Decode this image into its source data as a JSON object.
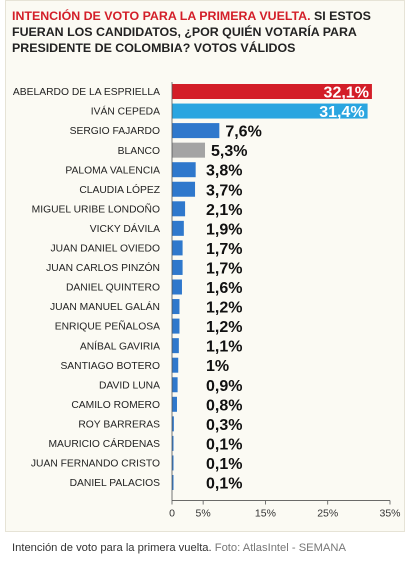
{
  "header": {
    "title_red": "INTENCIÓN DE VOTO PARA LA PRIMERA VUELTA.",
    "title_rest": "SI ESTOS FUERAN LOS CANDIDATOS, ¿POR QUIÉN VOTARÍA PARA PRESIDENTE DE COLOMBIA? VOTOS VÁLIDOS"
  },
  "caption": {
    "text": "Intención de voto para la primera vuelta.",
    "source": "Foto: AtlasIntel - SEMANA"
  },
  "colors": {
    "red": "#d31e28",
    "cyan": "#2aa5e0",
    "blue": "#2f78cc",
    "gray": "#a4a4a4",
    "title_red": "#d31e28"
  },
  "chart_data": {
    "type": "bar",
    "orientation": "horizontal",
    "categories": [
      "ABELARDO DE LA ESPRIELLA",
      "IVÁN CEPEDA",
      "SERGIO FAJARDO",
      "BLANCO",
      "PALOMA VALENCIA",
      "CLAUDIA LÓPEZ",
      "MIGUEL URIBE LONDOÑO",
      "VICKY DÁVILA",
      "JUAN DANIEL OVIEDO",
      "JUAN CARLOS PINZÓN",
      "DANIEL QUINTERO",
      "JUAN MANUEL GALÁN",
      "ENRIQUE PEÑALOSA",
      "ANÍBAL GAVIRIA",
      "SANTIAGO BOTERO",
      "DAVID LUNA",
      "CAMILO ROMERO",
      "ROY BARRERAS",
      "MAURICIO CÁRDENAS",
      "JUAN FERNANDO CRISTO",
      "DANIEL PALACIOS"
    ],
    "values": [
      32.1,
      31.4,
      7.6,
      5.3,
      3.8,
      3.7,
      2.1,
      1.9,
      1.7,
      1.7,
      1.6,
      1.2,
      1.2,
      1.1,
      1,
      0.9,
      0.8,
      0.3,
      0.1,
      0.1,
      0.1
    ],
    "value_labels": [
      "32,1%",
      "31,4%",
      "7,6%",
      "5,3%",
      "3,8%",
      "3,7%",
      "2,1%",
      "1,9%",
      "1,7%",
      "1,7%",
      "1,6%",
      "1,2%",
      "1,2%",
      "1,1%",
      "1%",
      "0,9%",
      "0,8%",
      "0,3%",
      "0,1%",
      "0,1%",
      "0,1%"
    ],
    "bar_colors": [
      "red",
      "cyan",
      "blue",
      "gray",
      "blue",
      "blue",
      "blue",
      "blue",
      "blue",
      "blue",
      "blue",
      "blue",
      "blue",
      "blue",
      "blue",
      "blue",
      "blue",
      "blue",
      "blue",
      "blue",
      "blue"
    ],
    "x_ticks": [
      0,
      5,
      15,
      25,
      35
    ],
    "x_tick_labels": [
      "0",
      "5%",
      "15%",
      "25%",
      "35%"
    ],
    "xlim": [
      0,
      35
    ],
    "grid": false,
    "xlabel": "",
    "ylabel": ""
  }
}
